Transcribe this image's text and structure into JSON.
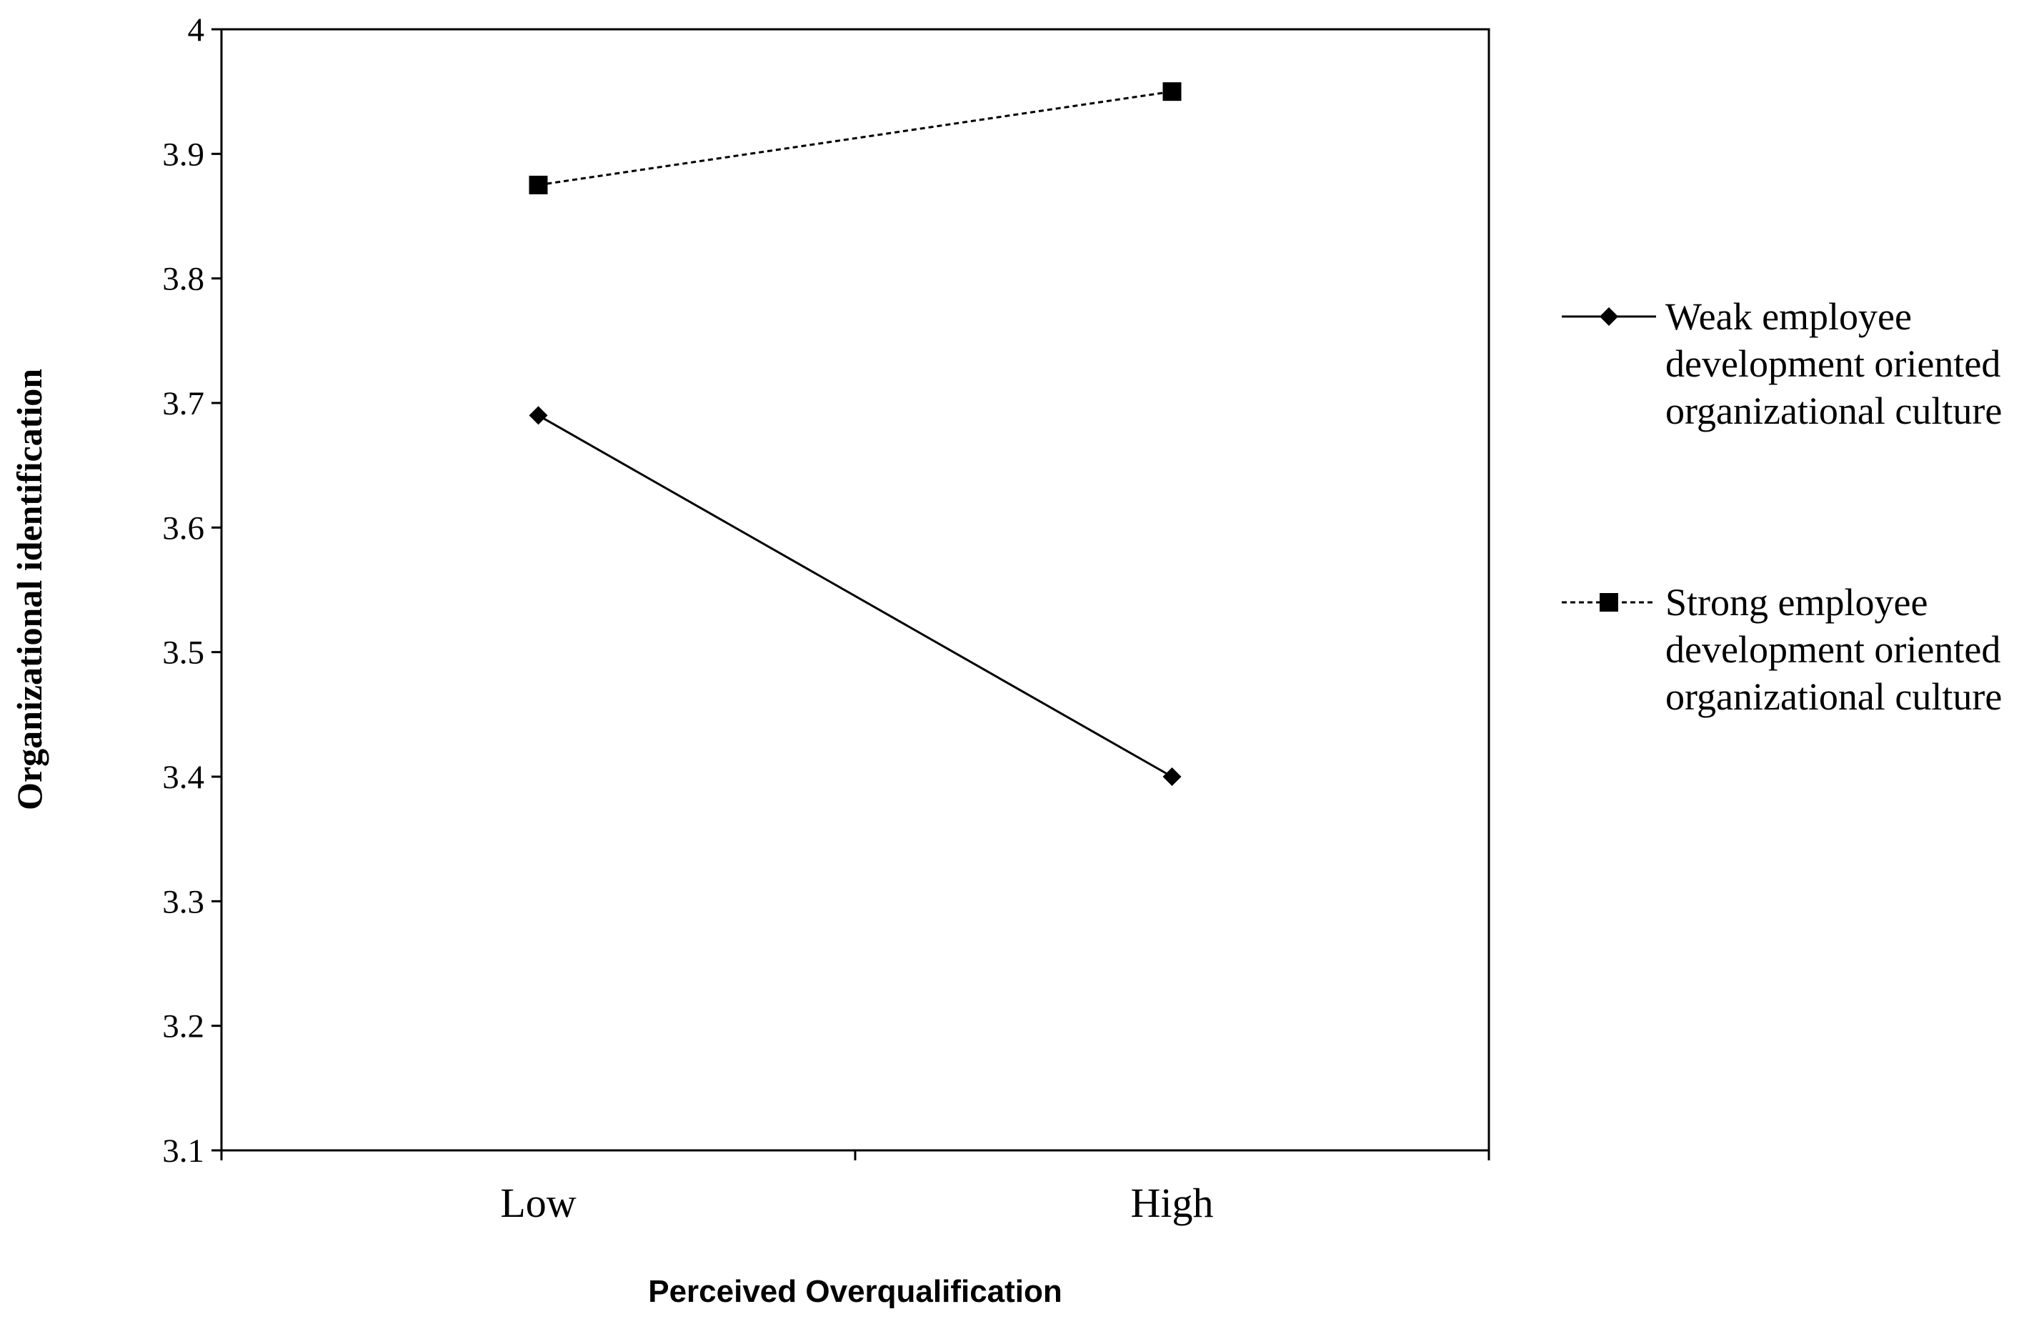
{
  "chart_data": {
    "type": "line",
    "categories": [
      "Low",
      "High"
    ],
    "series": [
      {
        "name": "Weak employee development oriented organizational culture",
        "name_lines": [
          "Weak employee",
          "development oriented",
          "organizational culture"
        ],
        "values": [
          3.69,
          3.4
        ],
        "marker": "diamond",
        "line_style": "solid",
        "color": "#000000"
      },
      {
        "name": "Strong employee development oriented organizational culture",
        "name_lines": [
          "Strong employee",
          "development oriented",
          "organizational culture"
        ],
        "values": [
          3.875,
          3.95
        ],
        "marker": "square",
        "line_style": "dashed",
        "color": "#000000"
      }
    ],
    "ylim": [
      3.1,
      4.0
    ],
    "yticks": [
      3.1,
      3.2,
      3.3,
      3.4,
      3.5,
      3.6,
      3.7,
      3.8,
      3.9,
      4.0
    ],
    "ytick_labels": [
      "3.1",
      "3.2",
      "3.3",
      "3.4",
      "3.5",
      "3.6",
      "3.7",
      "3.8",
      "3.9",
      "4"
    ],
    "xlabel": "Perceived Overqualification",
    "ylabel": "Organizational identification",
    "title": "",
    "grid": false,
    "legend_position": "right"
  }
}
